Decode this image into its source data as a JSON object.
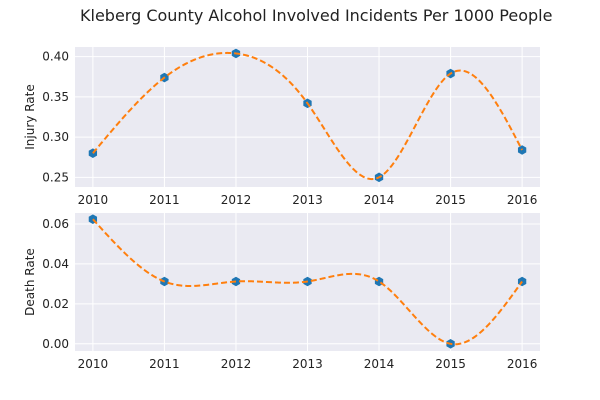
{
  "figure_title": "Kleberg County Alcohol Involved Incidents Per 1000 People",
  "chart_data": [
    {
      "type": "line",
      "title": "",
      "xlabel": "",
      "ylabel": "Injury Rate",
      "x": [
        2010,
        2011,
        2012,
        2013,
        2014,
        2015,
        2016
      ],
      "x_tick_labels": [
        "2010",
        "2011",
        "2012",
        "2013",
        "2014",
        "2015",
        "2016"
      ],
      "xlim": [
        2009.75,
        2016.25
      ],
      "ylim": [
        0.238,
        0.412
      ],
      "y_ticks": [
        0.25,
        0.3,
        0.35,
        0.4
      ],
      "y_tick_labels": [
        "0.25",
        "0.30",
        "0.35",
        "0.40"
      ],
      "grid": true,
      "series": [
        {
          "values": [
            0.28,
            0.374,
            0.404,
            0.342,
            0.25,
            0.379,
            0.284
          ],
          "marker": "hexagon",
          "marker_color": "#1f77b4",
          "line": "dashed smooth",
          "line_color": "#ff7f0e"
        }
      ]
    },
    {
      "type": "line",
      "title": "",
      "xlabel": "",
      "ylabel": "Death Rate",
      "x": [
        2010,
        2011,
        2012,
        2013,
        2014,
        2015,
        2016
      ],
      "x_tick_labels": [
        "2010",
        "2011",
        "2012",
        "2013",
        "2014",
        "2015",
        "2016"
      ],
      "xlim": [
        2009.75,
        2016.25
      ],
      "ylim": [
        -0.0036,
        0.0655
      ],
      "y_ticks": [
        0.0,
        0.02,
        0.04,
        0.06
      ],
      "y_tick_labels": [
        "0.00",
        "0.02",
        "0.04",
        "0.06"
      ],
      "grid": true,
      "series": [
        {
          "values": [
            0.0624,
            0.0312,
            0.0312,
            0.0312,
            0.0312,
            0.0,
            0.0312
          ],
          "marker": "hexagon",
          "marker_color": "#1f77b4",
          "line": "dashed smooth",
          "line_color": "#ff7f0e"
        }
      ]
    }
  ],
  "style": {
    "plot_background": "#eaeaf2",
    "grid_color": "#ffffff"
  }
}
